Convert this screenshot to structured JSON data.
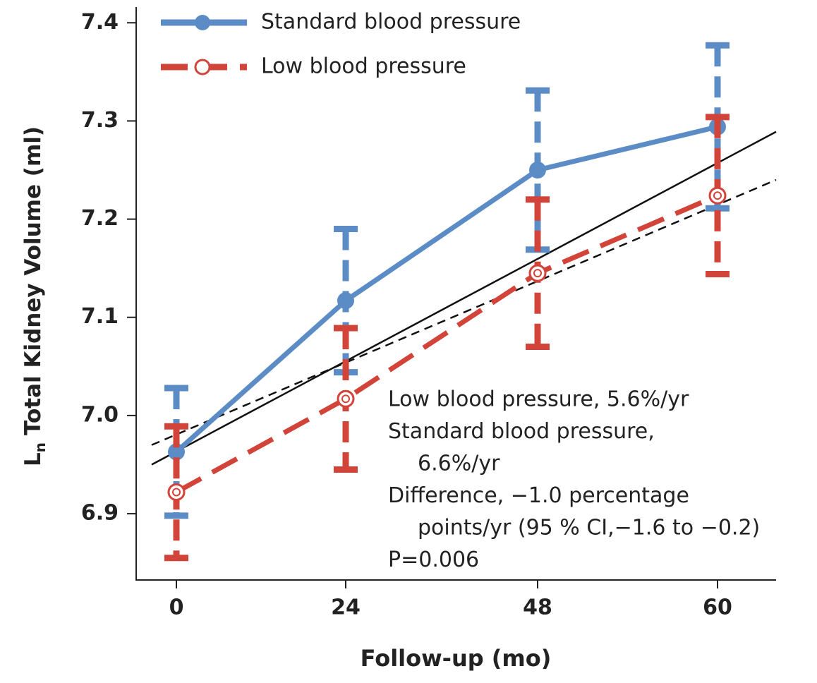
{
  "chart_data": {
    "type": "line",
    "y_label_prefix": "L",
    "y_label_sub": "n",
    "y_label": "Total Kidney Volume (ml)",
    "x_label": "Follow-up (mo)",
    "categories": [
      "0",
      "24",
      "48",
      "60"
    ],
    "series": [
      {
        "name": "Standard blood pressure",
        "color": "#5b8cc6",
        "style": "solid",
        "marker": "filled",
        "values": [
          6.963,
          7.117,
          7.25,
          7.294
        ],
        "errors": [
          0.065,
          0.073,
          0.081,
          0.083
        ]
      },
      {
        "name": "Low blood pressure",
        "color": "#d2443a",
        "style": "dashed",
        "marker": "open",
        "values": [
          6.922,
          7.017,
          7.145,
          7.224
        ],
        "errors": [
          0.067,
          0.072,
          0.075,
          0.08
        ]
      }
    ],
    "trend_lines": [
      {
        "style": "solid",
        "values": [
          6.95,
          7.289
        ]
      },
      {
        "style": "dashed",
        "values": [
          6.97,
          7.24
        ]
      }
    ],
    "ylim": [
      6.8325,
      7.416
    ],
    "yticks": [
      6.9,
      {
        "value": 7,
        "label": "7.0"
      },
      7.1,
      7.2,
      7.3,
      7.4
    ],
    "legend": "top-left",
    "annotation": [
      "Low blood pressure, 5.6%/yr",
      "Standard blood pressure,",
      "6.6%/yr",
      "Difference, −1.0 percentage",
      "points/yr (95 % CI,−1.6 to −0.2)",
      "P=0.006"
    ]
  }
}
